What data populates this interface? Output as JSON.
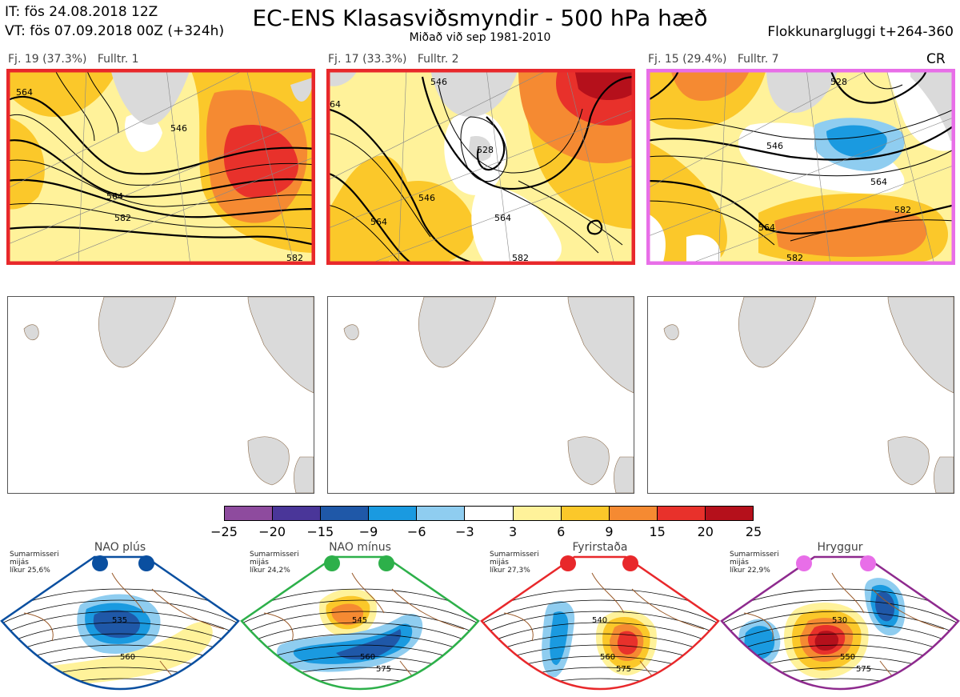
{
  "header": {
    "it_line": "IT: fös 24.08.2018 12Z",
    "vt_line": "VT: fös 07.09.2018 00Z  (+324h)",
    "title": "EC-ENS Klasasviðsmyndir - 500 hPa hæð",
    "subtitle": "Miðað við sep 1981-2010",
    "window": "Flokkunargluggi t+264-360"
  },
  "panels": [
    {
      "freq": "Fj. 19 (37.3%)",
      "rep": "Fulltr. 1",
      "border": "#e8282b",
      "tag": ""
    },
    {
      "freq": "Fj. 17 (33.3%)",
      "rep": "Fulltr. 2",
      "border": "#e8282b",
      "tag": ""
    },
    {
      "freq": "Fj. 15 (29.4%)",
      "rep": "Fulltr. 7",
      "border": "#e86ee8",
      "tag": "CR"
    }
  ],
  "contour_labels": {
    "p1": [
      "564",
      "546",
      "564",
      "582",
      "582"
    ],
    "p2": [
      "64",
      "546",
      "564",
      "546",
      "564",
      "528",
      "582"
    ],
    "p3": [
      "546",
      "528",
      "564",
      "582",
      "564",
      "582"
    ]
  },
  "colorbar": {
    "ticks": [
      "−25",
      "−20",
      "−15",
      "−9",
      "−6",
      "−3",
      "3",
      "6",
      "9",
      "15",
      "20",
      "25"
    ],
    "colors": [
      "#8e4b9e",
      "#4a3699",
      "#1f58a8",
      "#1a9ae0",
      "#8fcdf0",
      "#ffffff",
      "#fff29a",
      "#fbc82a",
      "#f58a32",
      "#e8312b",
      "#b5101b"
    ]
  },
  "regimes": [
    {
      "name": "NAO plús",
      "season": "Sumarmisseri",
      "freq": "mijás",
      "likelihood": "líkur 25,6%",
      "dot_color": "#0a4fa0",
      "frame_color": "#0a4fa0",
      "labels": [
        "535",
        "560"
      ]
    },
    {
      "name": "NAO mínus",
      "season": "Sumarmisseri",
      "freq": "mijás",
      "likelihood": "líkur 24,2%",
      "dot_color": "#2db04a",
      "frame_color": "#2db04a",
      "labels": [
        "545",
        "560",
        "575"
      ]
    },
    {
      "name": "Fyrirstaða",
      "season": "Sumarmisseri",
      "freq": "mijás",
      "likelihood": "líkur 27,3%",
      "dot_color": "#e8282b",
      "frame_color": "#e8282b",
      "labels": [
        "540",
        "560",
        "575"
      ]
    },
    {
      "name": "Hryggur",
      "season": "Sumarmisseri",
      "freq": "mijás",
      "likelihood": "líkur 22,9%",
      "dot_color": "#e86ee8",
      "frame_color": "#8e2a8e",
      "labels": [
        "530",
        "550",
        "575"
      ]
    }
  ]
}
